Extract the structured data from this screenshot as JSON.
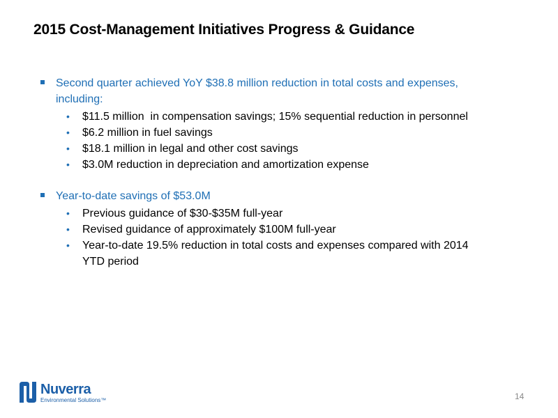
{
  "title": "2015 Cost-Management Initiatives Progress & Guidance",
  "sections": [
    {
      "text": "Second quarter achieved YoY $38.8 million reduction in total costs and expenses, including:",
      "items": [
        "$11.5 million  in compensation savings; 15% sequential reduction in personnel",
        "$6.2 million in fuel savings",
        "$18.1 million in legal and other cost savings",
        "$3.0M reduction in depreciation and amortization expense"
      ]
    },
    {
      "text": "Year-to-date savings of $53.0M",
      "items": [
        "Previous guidance of $30-$35M full-year",
        "Revised guidance of approximately $100M full-year",
        "Year-to-date 19.5% reduction in total costs and expenses compared with 2014 YTD period"
      ]
    }
  ],
  "footer": {
    "logo_name": "Nuverra",
    "logo_tagline": "Environmental Solutions™",
    "page_number": 14
  }
}
